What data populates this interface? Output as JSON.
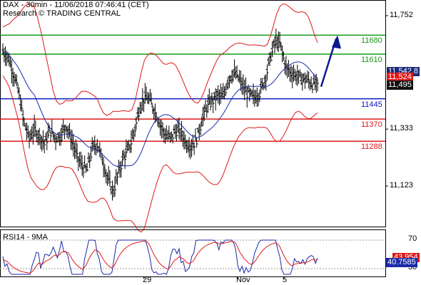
{
  "header": {
    "line1": "DAX - 30min - 11/06/2018 07:46:41 (CET)",
    "line2": "Research © TRADING CENTRAL"
  },
  "rsi_panel": {
    "title": "RSI14 - 9MA"
  },
  "colors": {
    "candle": "#000000",
    "bollinger": "#e01818",
    "ma": "#1a2aa8",
    "resistance": "#159a15",
    "pivot": "#0a18c0",
    "support": "#e01818",
    "arrow": "#0b1a8a",
    "rsi_line": "#1a2aa8",
    "rsi_ma": "#e01818",
    "tag_dark": "#1a2a7a",
    "tag_red": "#e01818",
    "tag_blue": "#1a2aa8"
  },
  "chart_data": [
    {
      "type": "candlestick",
      "title": "DAX - 30min",
      "y_ticks": [
        "11,752",
        "11,333",
        "11,123"
      ],
      "y_tick_values": [
        11752,
        11333,
        11123
      ],
      "x_ticks": [
        "29",
        "Nov",
        "5"
      ],
      "levels": [
        {
          "name": "resistance_2",
          "value": 11680,
          "label": "11680",
          "color": "#159a15"
        },
        {
          "name": "resistance_1",
          "value": 11610,
          "label": "11610",
          "color": "#159a15"
        },
        {
          "name": "pivot",
          "value": 11445,
          "label": "11445",
          "color": "#0a18c0"
        },
        {
          "name": "support_1",
          "value": 11370,
          "label": "11370",
          "color": "#e01818"
        },
        {
          "name": "support_2",
          "value": 11288,
          "label": "11288",
          "color": "#e01818"
        }
      ],
      "value_tags": [
        {
          "label": "11,542.8",
          "value": 11542.8,
          "color": "#1a2a7a"
        },
        {
          "label": "11,524",
          "value": 11524,
          "color": "#e01818"
        },
        {
          "label": "11,495",
          "value": 11495,
          "color": "#111111"
        }
      ],
      "price_path": [
        [
          0,
          11620
        ],
        [
          5,
          11600
        ],
        [
          10,
          11540
        ],
        [
          15,
          11470
        ],
        [
          20,
          11360
        ],
        [
          25,
          11300
        ],
        [
          30,
          11330
        ],
        [
          35,
          11310
        ],
        [
          40,
          11280
        ],
        [
          45,
          11330
        ],
        [
          50,
          11300
        ],
        [
          55,
          11310
        ],
        [
          60,
          11350
        ],
        [
          65,
          11300
        ],
        [
          70,
          11240
        ],
        [
          75,
          11200
        ],
        [
          80,
          11180
        ],
        [
          85,
          11260
        ],
        [
          90,
          11280
        ],
        [
          95,
          11220
        ],
        [
          100,
          11150
        ],
        [
          105,
          11100
        ],
        [
          110,
          11170
        ],
        [
          115,
          11230
        ],
        [
          120,
          11260
        ],
        [
          125,
          11320
        ],
        [
          130,
          11410
        ],
        [
          135,
          11450
        ],
        [
          140,
          11440
        ],
        [
          145,
          11400
        ],
        [
          150,
          11350
        ],
        [
          155,
          11310
        ],
        [
          160,
          11300
        ],
        [
          165,
          11330
        ],
        [
          170,
          11320
        ],
        [
          175,
          11280
        ],
        [
          180,
          11270
        ],
        [
          185,
          11300
        ],
        [
          190,
          11370
        ],
        [
          195,
          11420
        ],
        [
          200,
          11440
        ],
        [
          205,
          11460
        ],
        [
          210,
          11450
        ],
        [
          215,
          11520
        ],
        [
          220,
          11540
        ],
        [
          225,
          11520
        ],
        [
          230,
          11480
        ],
        [
          235,
          11460
        ],
        [
          240,
          11450
        ],
        [
          245,
          11470
        ],
        [
          250,
          11520
        ],
        [
          255,
          11600
        ],
        [
          260,
          11660
        ],
        [
          265,
          11640
        ],
        [
          270,
          11560
        ],
        [
          275,
          11540
        ],
        [
          280,
          11530
        ],
        [
          285,
          11520
        ],
        [
          290,
          11515
        ],
        [
          295,
          11500
        ],
        [
          300,
          11495
        ]
      ]
    },
    {
      "type": "line",
      "title": "RSI14 - 9MA",
      "y_ticks": [
        "70",
        "30"
      ],
      "y_tick_values": [
        70,
        30
      ],
      "series": [
        {
          "name": "RSI14",
          "value_label": "40.7585",
          "last": 40.7585
        },
        {
          "name": "9MA",
          "value_label": "43.954",
          "last": 43.954
        }
      ]
    }
  ]
}
